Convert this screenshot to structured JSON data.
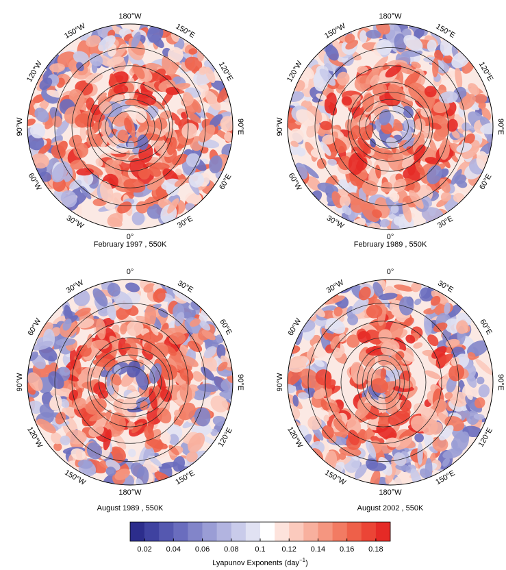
{
  "panels": [
    {
      "caption": "February 1997 , 550K",
      "longitudes": [
        "180°W",
        "150°E",
        "120°E",
        "90°E",
        "60°E",
        "30°E",
        "0°",
        "30°W",
        "60°W",
        "90°W",
        "120°W",
        "150°W"
      ]
    },
    {
      "caption": "February 1989 , 550K",
      "longitudes": [
        "180°W",
        "150°E",
        "120°E",
        "90°E",
        "60°E",
        "30°E",
        "0°",
        "30°W",
        "60°W",
        "90°W",
        "120°W",
        "150°W"
      ]
    },
    {
      "caption": "August 1989 , 550K",
      "longitudes": [
        "0°",
        "30°E",
        "60°E",
        "90°E",
        "120°E",
        "150°E",
        "180°W",
        "150°W",
        "120°W",
        "90°W",
        "60°W",
        "30°W"
      ]
    },
    {
      "caption": "August 2002 , 550K",
      "longitudes": [
        "0°",
        "30°E",
        "60°E",
        "90°E",
        "120°E",
        "150°E",
        "180°W",
        "150°W",
        "120°W",
        "90°W",
        "60°W",
        "30°W"
      ]
    }
  ],
  "colorbar": {
    "range": [
      0.01,
      0.19
    ],
    "ticks": [
      0.02,
      0.04,
      0.06,
      0.08,
      0.1,
      0.12,
      0.14,
      0.16,
      0.18
    ],
    "colors": [
      "#2c2d8c",
      "#3f42a0",
      "#5558b0",
      "#6a6dbe",
      "#8285c9",
      "#9a9dd5",
      "#b2b4e0",
      "#c9cbea",
      "#e1e2f3",
      "#ffffff",
      "#fde3dc",
      "#fbcabd",
      "#f8b09e",
      "#f59680",
      "#f27b63",
      "#ee6049",
      "#eb4536",
      "#e52a26"
    ],
    "label": "Lyapunov Exponents (day",
    "label_exponent": "−1",
    "label_end": ")"
  }
}
